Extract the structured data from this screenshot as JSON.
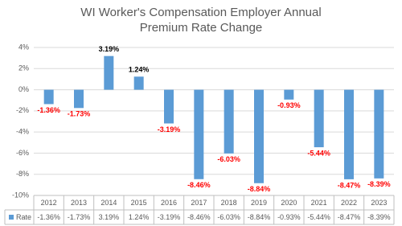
{
  "chart_data": {
    "type": "bar",
    "title": "WI Worker's Compensation Employer Annual Premium Rate Change",
    "categories": [
      "2012",
      "2013",
      "2014",
      "2015",
      "2016",
      "2017",
      "2018",
      "2019",
      "2020",
      "2021",
      "2022",
      "2023"
    ],
    "series": [
      {
        "name": "Rate",
        "color": "#5b9bd5",
        "values": [
          -1.36,
          -1.73,
          3.19,
          1.24,
          -3.19,
          -8.46,
          -6.03,
          -8.84,
          -0.93,
          -5.44,
          -8.47,
          -8.39
        ],
        "value_labels": [
          "-1.36%",
          "-1.73%",
          "3.19%",
          "1.24%",
          "-3.19%",
          "-8.46%",
          "-6.03%",
          "-8.84%",
          "-0.93%",
          "-5.44%",
          "-8.47%",
          "-8.39%"
        ]
      }
    ],
    "ylim": [
      -10,
      4
    ],
    "yticks": [
      {
        "value": -10,
        "label": "-10%"
      },
      {
        "value": -8,
        "label": "-8%"
      },
      {
        "value": -6,
        "label": "-6%"
      },
      {
        "value": -4,
        "label": "-4%"
      },
      {
        "value": -2,
        "label": "-2%"
      },
      {
        "value": 0,
        "label": "0%"
      },
      {
        "value": 2,
        "label": "2%"
      },
      {
        "value": 4,
        "label": "4%"
      }
    ],
    "grid": true
  }
}
